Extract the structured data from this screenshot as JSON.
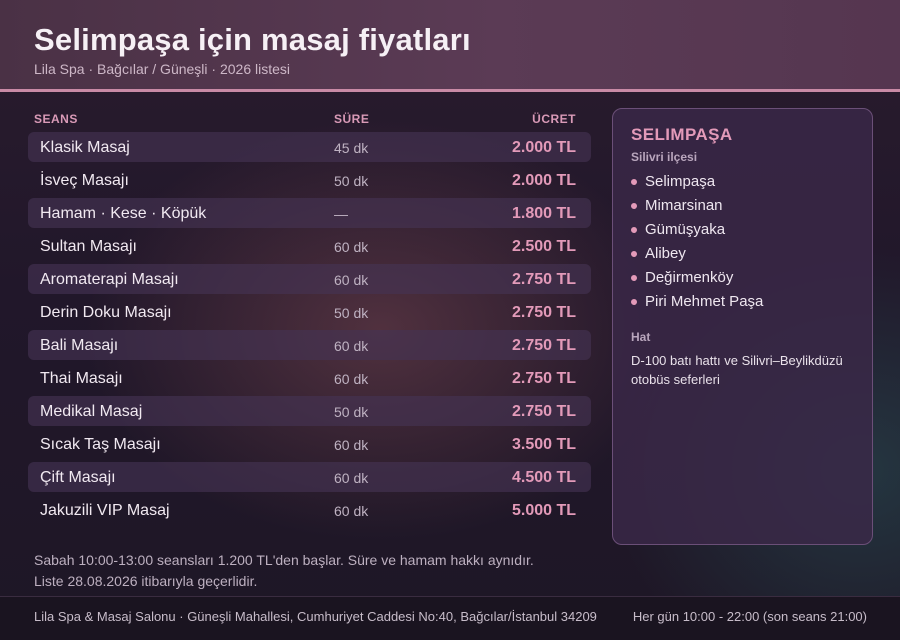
{
  "header": {
    "title": "Selimpaşa için masaj fiyatları",
    "subtitle": "Lila Spa · Bağcılar / Güneşli · 2026 listesi"
  },
  "table": {
    "columns": {
      "seans": "SEANS",
      "sure": "SÜRE",
      "ucret": "ÜCRET"
    },
    "rows": [
      {
        "name": "Klasik Masaj",
        "duration": "45 dk",
        "price": "2.000 TL"
      },
      {
        "name": "İsveç Masajı",
        "duration": "50 dk",
        "price": "2.000 TL"
      },
      {
        "name": "Hamam · Kese · Köpük",
        "duration": "—",
        "price": "1.800 TL"
      },
      {
        "name": "Sultan Masajı",
        "duration": "60 dk",
        "price": "2.500 TL"
      },
      {
        "name": "Aromaterapi Masajı",
        "duration": "60 dk",
        "price": "2.750 TL"
      },
      {
        "name": "Derin Doku Masajı",
        "duration": "50 dk",
        "price": "2.750 TL"
      },
      {
        "name": "Bali Masajı",
        "duration": "60 dk",
        "price": "2.750 TL"
      },
      {
        "name": "Thai Masajı",
        "duration": "60 dk",
        "price": "2.750 TL"
      },
      {
        "name": "Medikal Masaj",
        "duration": "50 dk",
        "price": "2.750 TL"
      },
      {
        "name": "Sıcak Taş Masajı",
        "duration": "60 dk",
        "price": "3.500 TL"
      },
      {
        "name": "Çift Masajı",
        "duration": "60 dk",
        "price": "4.500 TL"
      },
      {
        "name": "Jakuzili VIP Masaj",
        "duration": "60 dk",
        "price": "5.000 TL"
      }
    ]
  },
  "notes": {
    "line1": "Sabah 10:00-13:00 seansları 1.200 TL'den başlar. Süre ve hamam hakkı aynıdır.",
    "line2": "Liste 28.08.2026 itibarıyla geçerlidir."
  },
  "side": {
    "title": "SELIMPAŞA",
    "district_label": "Silivri ilçesi",
    "areas": [
      "Selimpaşa",
      "Mimarsinan",
      "Gümüşyaka",
      "Alibey",
      "Değirmenköy",
      "Piri Mehmet Paşa"
    ],
    "hat_label": "Hat",
    "hat_text": "D-100 batı hattı ve Silivri–Beylikdüzü otobüs seferleri"
  },
  "footer": {
    "address": "Lila Spa & Masaj Salonu · Güneşli Mahallesi, Cumhuriyet Caddesi No:40, Bağcılar/İstanbul 34209",
    "hours": "Her gün 10:00 - 22:00 (son seans 21:00)"
  },
  "colors": {
    "accent": "#e39ab9",
    "header_bg": "#553650",
    "panel_bg": "#3a2848"
  }
}
